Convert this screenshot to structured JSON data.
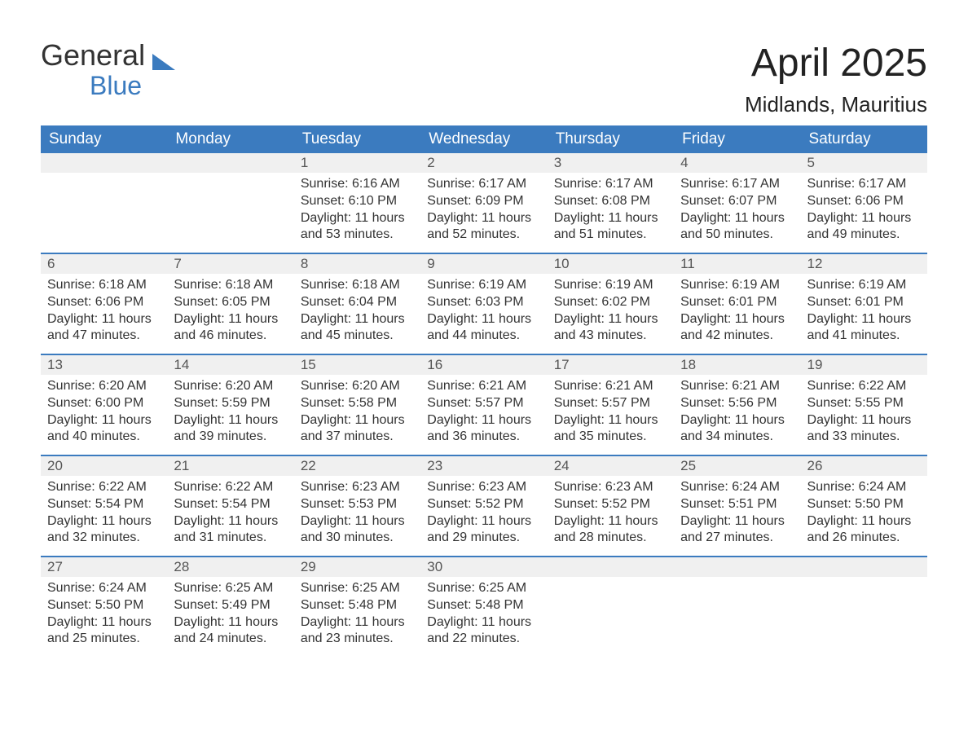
{
  "logo": {
    "text1": "General",
    "text2": "Blue",
    "color_text": "#333333",
    "color_blue": "#3b7bbf"
  },
  "title": "April 2025",
  "subtitle": "Midlands, Mauritius",
  "colors": {
    "header_bg": "#3b7bbf",
    "header_fg": "#ffffff",
    "daynum_bg": "#f0f0f0",
    "week_border": "#3b7bbf",
    "text": "#333333",
    "page_bg": "#ffffff"
  },
  "day_names": [
    "Sunday",
    "Monday",
    "Tuesday",
    "Wednesday",
    "Thursday",
    "Friday",
    "Saturday"
  ],
  "weeks": [
    [
      null,
      null,
      {
        "num": "1",
        "sunrise": "Sunrise: 6:16 AM",
        "sunset": "Sunset: 6:10 PM",
        "day1": "Daylight: 11 hours",
        "day2": "and 53 minutes."
      },
      {
        "num": "2",
        "sunrise": "Sunrise: 6:17 AM",
        "sunset": "Sunset: 6:09 PM",
        "day1": "Daylight: 11 hours",
        "day2": "and 52 minutes."
      },
      {
        "num": "3",
        "sunrise": "Sunrise: 6:17 AM",
        "sunset": "Sunset: 6:08 PM",
        "day1": "Daylight: 11 hours",
        "day2": "and 51 minutes."
      },
      {
        "num": "4",
        "sunrise": "Sunrise: 6:17 AM",
        "sunset": "Sunset: 6:07 PM",
        "day1": "Daylight: 11 hours",
        "day2": "and 50 minutes."
      },
      {
        "num": "5",
        "sunrise": "Sunrise: 6:17 AM",
        "sunset": "Sunset: 6:06 PM",
        "day1": "Daylight: 11 hours",
        "day2": "and 49 minutes."
      }
    ],
    [
      {
        "num": "6",
        "sunrise": "Sunrise: 6:18 AM",
        "sunset": "Sunset: 6:06 PM",
        "day1": "Daylight: 11 hours",
        "day2": "and 47 minutes."
      },
      {
        "num": "7",
        "sunrise": "Sunrise: 6:18 AM",
        "sunset": "Sunset: 6:05 PM",
        "day1": "Daylight: 11 hours",
        "day2": "and 46 minutes."
      },
      {
        "num": "8",
        "sunrise": "Sunrise: 6:18 AM",
        "sunset": "Sunset: 6:04 PM",
        "day1": "Daylight: 11 hours",
        "day2": "and 45 minutes."
      },
      {
        "num": "9",
        "sunrise": "Sunrise: 6:19 AM",
        "sunset": "Sunset: 6:03 PM",
        "day1": "Daylight: 11 hours",
        "day2": "and 44 minutes."
      },
      {
        "num": "10",
        "sunrise": "Sunrise: 6:19 AM",
        "sunset": "Sunset: 6:02 PM",
        "day1": "Daylight: 11 hours",
        "day2": "and 43 minutes."
      },
      {
        "num": "11",
        "sunrise": "Sunrise: 6:19 AM",
        "sunset": "Sunset: 6:01 PM",
        "day1": "Daylight: 11 hours",
        "day2": "and 42 minutes."
      },
      {
        "num": "12",
        "sunrise": "Sunrise: 6:19 AM",
        "sunset": "Sunset: 6:01 PM",
        "day1": "Daylight: 11 hours",
        "day2": "and 41 minutes."
      }
    ],
    [
      {
        "num": "13",
        "sunrise": "Sunrise: 6:20 AM",
        "sunset": "Sunset: 6:00 PM",
        "day1": "Daylight: 11 hours",
        "day2": "and 40 minutes."
      },
      {
        "num": "14",
        "sunrise": "Sunrise: 6:20 AM",
        "sunset": "Sunset: 5:59 PM",
        "day1": "Daylight: 11 hours",
        "day2": "and 39 minutes."
      },
      {
        "num": "15",
        "sunrise": "Sunrise: 6:20 AM",
        "sunset": "Sunset: 5:58 PM",
        "day1": "Daylight: 11 hours",
        "day2": "and 37 minutes."
      },
      {
        "num": "16",
        "sunrise": "Sunrise: 6:21 AM",
        "sunset": "Sunset: 5:57 PM",
        "day1": "Daylight: 11 hours",
        "day2": "and 36 minutes."
      },
      {
        "num": "17",
        "sunrise": "Sunrise: 6:21 AM",
        "sunset": "Sunset: 5:57 PM",
        "day1": "Daylight: 11 hours",
        "day2": "and 35 minutes."
      },
      {
        "num": "18",
        "sunrise": "Sunrise: 6:21 AM",
        "sunset": "Sunset: 5:56 PM",
        "day1": "Daylight: 11 hours",
        "day2": "and 34 minutes."
      },
      {
        "num": "19",
        "sunrise": "Sunrise: 6:22 AM",
        "sunset": "Sunset: 5:55 PM",
        "day1": "Daylight: 11 hours",
        "day2": "and 33 minutes."
      }
    ],
    [
      {
        "num": "20",
        "sunrise": "Sunrise: 6:22 AM",
        "sunset": "Sunset: 5:54 PM",
        "day1": "Daylight: 11 hours",
        "day2": "and 32 minutes."
      },
      {
        "num": "21",
        "sunrise": "Sunrise: 6:22 AM",
        "sunset": "Sunset: 5:54 PM",
        "day1": "Daylight: 11 hours",
        "day2": "and 31 minutes."
      },
      {
        "num": "22",
        "sunrise": "Sunrise: 6:23 AM",
        "sunset": "Sunset: 5:53 PM",
        "day1": "Daylight: 11 hours",
        "day2": "and 30 minutes."
      },
      {
        "num": "23",
        "sunrise": "Sunrise: 6:23 AM",
        "sunset": "Sunset: 5:52 PM",
        "day1": "Daylight: 11 hours",
        "day2": "and 29 minutes."
      },
      {
        "num": "24",
        "sunrise": "Sunrise: 6:23 AM",
        "sunset": "Sunset: 5:52 PM",
        "day1": "Daylight: 11 hours",
        "day2": "and 28 minutes."
      },
      {
        "num": "25",
        "sunrise": "Sunrise: 6:24 AM",
        "sunset": "Sunset: 5:51 PM",
        "day1": "Daylight: 11 hours",
        "day2": "and 27 minutes."
      },
      {
        "num": "26",
        "sunrise": "Sunrise: 6:24 AM",
        "sunset": "Sunset: 5:50 PM",
        "day1": "Daylight: 11 hours",
        "day2": "and 26 minutes."
      }
    ],
    [
      {
        "num": "27",
        "sunrise": "Sunrise: 6:24 AM",
        "sunset": "Sunset: 5:50 PM",
        "day1": "Daylight: 11 hours",
        "day2": "and 25 minutes."
      },
      {
        "num": "28",
        "sunrise": "Sunrise: 6:25 AM",
        "sunset": "Sunset: 5:49 PM",
        "day1": "Daylight: 11 hours",
        "day2": "and 24 minutes."
      },
      {
        "num": "29",
        "sunrise": "Sunrise: 6:25 AM",
        "sunset": "Sunset: 5:48 PM",
        "day1": "Daylight: 11 hours",
        "day2": "and 23 minutes."
      },
      {
        "num": "30",
        "sunrise": "Sunrise: 6:25 AM",
        "sunset": "Sunset: 5:48 PM",
        "day1": "Daylight: 11 hours",
        "day2": "and 22 minutes."
      },
      null,
      null,
      null
    ]
  ]
}
